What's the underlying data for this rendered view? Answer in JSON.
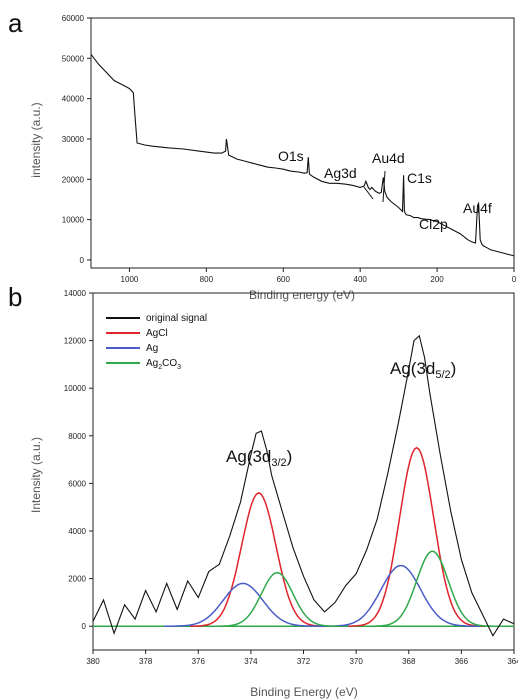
{
  "chart_data": [
    {
      "panel_label": "a",
      "type": "line",
      "xlabel": "Binding energy (eV)",
      "ylabel": "intensity (a.u.)",
      "xlim": [
        1100,
        0
      ],
      "ylim": [
        -2000,
        60000
      ],
      "x_ticks": [
        1000,
        800,
        600,
        400,
        200,
        0
      ],
      "y_ticks": [
        0,
        10000,
        20000,
        30000,
        40000,
        50000,
        60000
      ],
      "grid": false,
      "series": [
        {
          "x": [
            1100,
            1080,
            1060,
            1040,
            1020,
            1000,
            990,
            985,
            980,
            960,
            940,
            900,
            860,
            820,
            780,
            760,
            750,
            748,
            742,
            720,
            700,
            680,
            660,
            640,
            620,
            600,
            580,
            560,
            545,
            538,
            535,
            532,
            528,
            520,
            500,
            480,
            460,
            440,
            420,
            400,
            390,
            385,
            380,
            378,
            374,
            370,
            365,
            360,
            350,
            345,
            340,
            336,
            330,
            320,
            300,
            290,
            287,
            285,
            282,
            280,
            270,
            260,
            250,
            240,
            220,
            200,
            180,
            160,
            140,
            120,
            110,
            100,
            95,
            92,
            88,
            84,
            80,
            70,
            60,
            40,
            20,
            0
          ],
          "y": [
            51000,
            48500,
            46500,
            44500,
            43500,
            42500,
            41500,
            35000,
            29000,
            28500,
            28200,
            27800,
            27500,
            27000,
            26500,
            26500,
            27000,
            30000,
            26000,
            25000,
            24500,
            24000,
            23500,
            23000,
            22800,
            22500,
            22000,
            21800,
            21500,
            21600,
            25500,
            21300,
            21000,
            20500,
            19500,
            19000,
            19000,
            18800,
            18500,
            18000,
            18300,
            19500,
            18200,
            17800,
            17500,
            18000,
            17500,
            17000,
            16500,
            16800,
            20500,
            17000,
            15500,
            14500,
            13000,
            12000,
            21000,
            12000,
            11500,
            11200,
            11000,
            10500,
            10500,
            10200,
            10000,
            9500,
            8500,
            7500,
            6500,
            5000,
            4500,
            4200,
            13500,
            14000,
            5000,
            4000,
            3500,
            3000,
            2500,
            2000,
            1500,
            1000
          ]
        }
      ],
      "annotations": [
        "O1s",
        "Ag3d",
        "Au4d",
        "C1s",
        "Cl2p",
        "Au4f"
      ]
    },
    {
      "panel_label": "b",
      "type": "line",
      "xlabel": "Binding Energy (eV)",
      "ylabel": "Intensity (a.u.)",
      "xlim": [
        380,
        364
      ],
      "ylim": [
        -1000,
        14000
      ],
      "x_ticks": [
        380,
        378,
        376,
        374,
        372,
        370,
        368,
        366,
        364
      ],
      "y_ticks": [
        0,
        2000,
        4000,
        6000,
        8000,
        10000,
        12000,
        14000
      ],
      "grid": false,
      "legend_position": "top-left",
      "peak_labels": [
        {
          "main": "Ag(3d",
          "sub": "3/2",
          "close": ")"
        },
        {
          "main": "Ag(3d",
          "sub": "5/2",
          "close": ")"
        }
      ],
      "legend": [
        {
          "name": "original signal",
          "color": "#111111"
        },
        {
          "name": "AgCl",
          "color": "#e0242b"
        },
        {
          "name": "Ag",
          "color": "#4a5cc7"
        },
        {
          "name": "Ag2CO3",
          "main": "Ag",
          "sub1": "2",
          "mid": "CO",
          "sub2": "3",
          "color": "#2fa84a"
        }
      ],
      "components": [
        {
          "name": "AgCl",
          "color": "#e0242b",
          "peaks": [
            {
              "center": 373.7,
              "height": 5600,
              "sigma": 0.65
            },
            {
              "center": 367.7,
              "height": 7500,
              "sigma": 0.65
            }
          ]
        },
        {
          "name": "Ag",
          "color": "#4a5cc7",
          "peaks": [
            {
              "center": 374.3,
              "height": 1800,
              "sigma": 0.75
            },
            {
              "center": 368.3,
              "height": 2550,
              "sigma": 0.75
            }
          ]
        },
        {
          "name": "Ag2CO3",
          "color": "#2fa84a",
          "peaks": [
            {
              "center": 373.0,
              "height": 2250,
              "sigma": 0.6
            },
            {
              "center": 367.1,
              "height": 3150,
              "sigma": 0.6
            }
          ]
        }
      ],
      "baseline": {
        "name": "baseline",
        "color": "#2fa84a",
        "value": 0
      },
      "original_signal": {
        "x": [
          380,
          379.6,
          379.2,
          378.8,
          378.4,
          378.0,
          377.6,
          377.2,
          376.8,
          376.4,
          376.0,
          375.6,
          375.2,
          374.8,
          374.4,
          374.0,
          373.8,
          373.6,
          373.4,
          373.2,
          372.8,
          372.4,
          372.0,
          371.6,
          371.2,
          370.8,
          370.4,
          370.0,
          369.6,
          369.2,
          368.8,
          368.4,
          368.0,
          367.8,
          367.6,
          367.4,
          367.2,
          366.8,
          366.4,
          366.0,
          365.6,
          365.2,
          364.8,
          364.4,
          364.0
        ],
        "y": [
          200,
          1100,
          -300,
          900,
          300,
          1500,
          600,
          1800,
          700,
          1900,
          1200,
          2300,
          2600,
          3800,
          5200,
          7200,
          8100,
          8200,
          7400,
          6300,
          4800,
          3300,
          2100,
          1100,
          600,
          1000,
          1700,
          2200,
          3200,
          4500,
          6400,
          8500,
          10800,
          12000,
          12200,
          11300,
          9800,
          7200,
          4800,
          2800,
          1400,
          500,
          -400,
          300,
          100
        ]
      }
    }
  ]
}
